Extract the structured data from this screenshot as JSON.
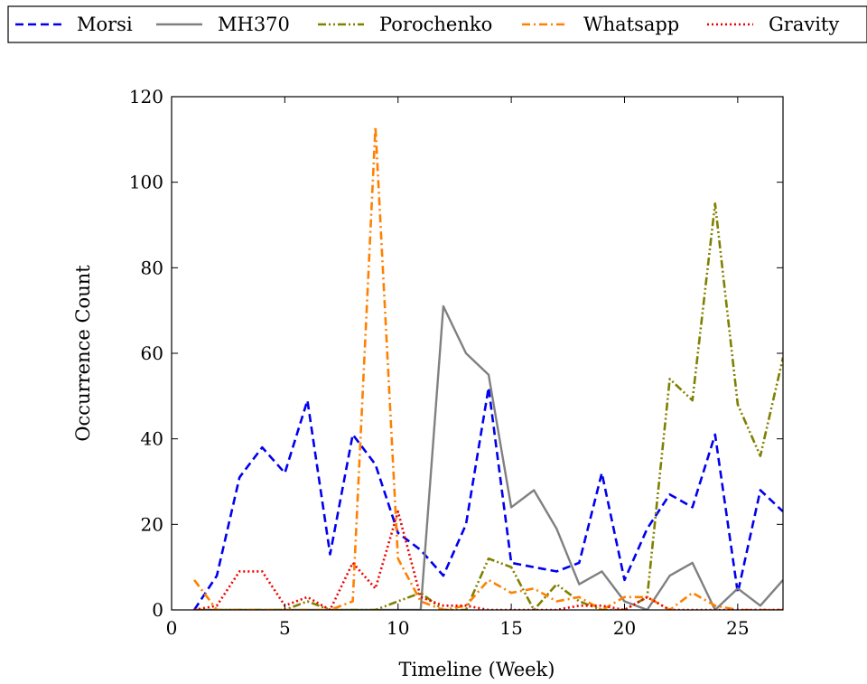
{
  "chart_data": {
    "type": "line",
    "title": "",
    "xlabel": "Timeline (Week)",
    "ylabel": "Occurrence Count",
    "xlim": [
      0,
      27
    ],
    "ylim": [
      0,
      120
    ],
    "xticks": [
      0,
      5,
      10,
      15,
      20,
      25
    ],
    "yticks": [
      0,
      20,
      40,
      60,
      80,
      100,
      120
    ],
    "grid": false,
    "legend_position": "top",
    "x": [
      1,
      2,
      3,
      4,
      5,
      6,
      7,
      8,
      9,
      10,
      11,
      12,
      13,
      14,
      15,
      16,
      17,
      18,
      19,
      20,
      21,
      22,
      23,
      24,
      25,
      26,
      27
    ],
    "series": [
      {
        "name": "Morsi",
        "color": "#0000ee",
        "dash": "dashed",
        "values": [
          0,
          8,
          31,
          38,
          32,
          49,
          13,
          41,
          34,
          18,
          14,
          8,
          20,
          52,
          11,
          10,
          9,
          11,
          32,
          7,
          19,
          27,
          24,
          41,
          4,
          28,
          23
        ]
      },
      {
        "name": "MH370",
        "color": "#808080",
        "dash": "solid",
        "values": [
          0,
          0,
          0,
          0,
          0,
          0,
          0,
          0,
          0,
          0,
          0,
          71,
          60,
          55,
          24,
          28,
          19,
          6,
          9,
          2,
          0,
          8,
          11,
          0,
          5,
          1,
          7
        ]
      },
      {
        "name": "Porochenko",
        "color": "#808000",
        "dash": "dashdotdot",
        "values": [
          0,
          0,
          0,
          0,
          0,
          2,
          0,
          0,
          0,
          2,
          4,
          0,
          0,
          12,
          10,
          0,
          6,
          2,
          0,
          0,
          3,
          54,
          49,
          95,
          48,
          36,
          59
        ]
      },
      {
        "name": "Whatsapp",
        "color": "#ff8000",
        "dash": "dashdot",
        "values": [
          7,
          0,
          0,
          0,
          0,
          0,
          0,
          2,
          113,
          12,
          2,
          0,
          1,
          7,
          4,
          5,
          2,
          3,
          0,
          3,
          3,
          0,
          4,
          1,
          0,
          0,
          0
        ]
      },
      {
        "name": "Gravity",
        "color": "#ee0000",
        "dash": "dotted",
        "values": [
          0,
          1,
          9,
          9,
          1,
          3,
          0,
          11,
          5,
          23,
          3,
          1,
          1,
          0,
          0,
          0,
          0,
          1,
          1,
          0,
          3,
          0,
          0,
          0,
          0,
          0,
          0
        ]
      }
    ]
  }
}
